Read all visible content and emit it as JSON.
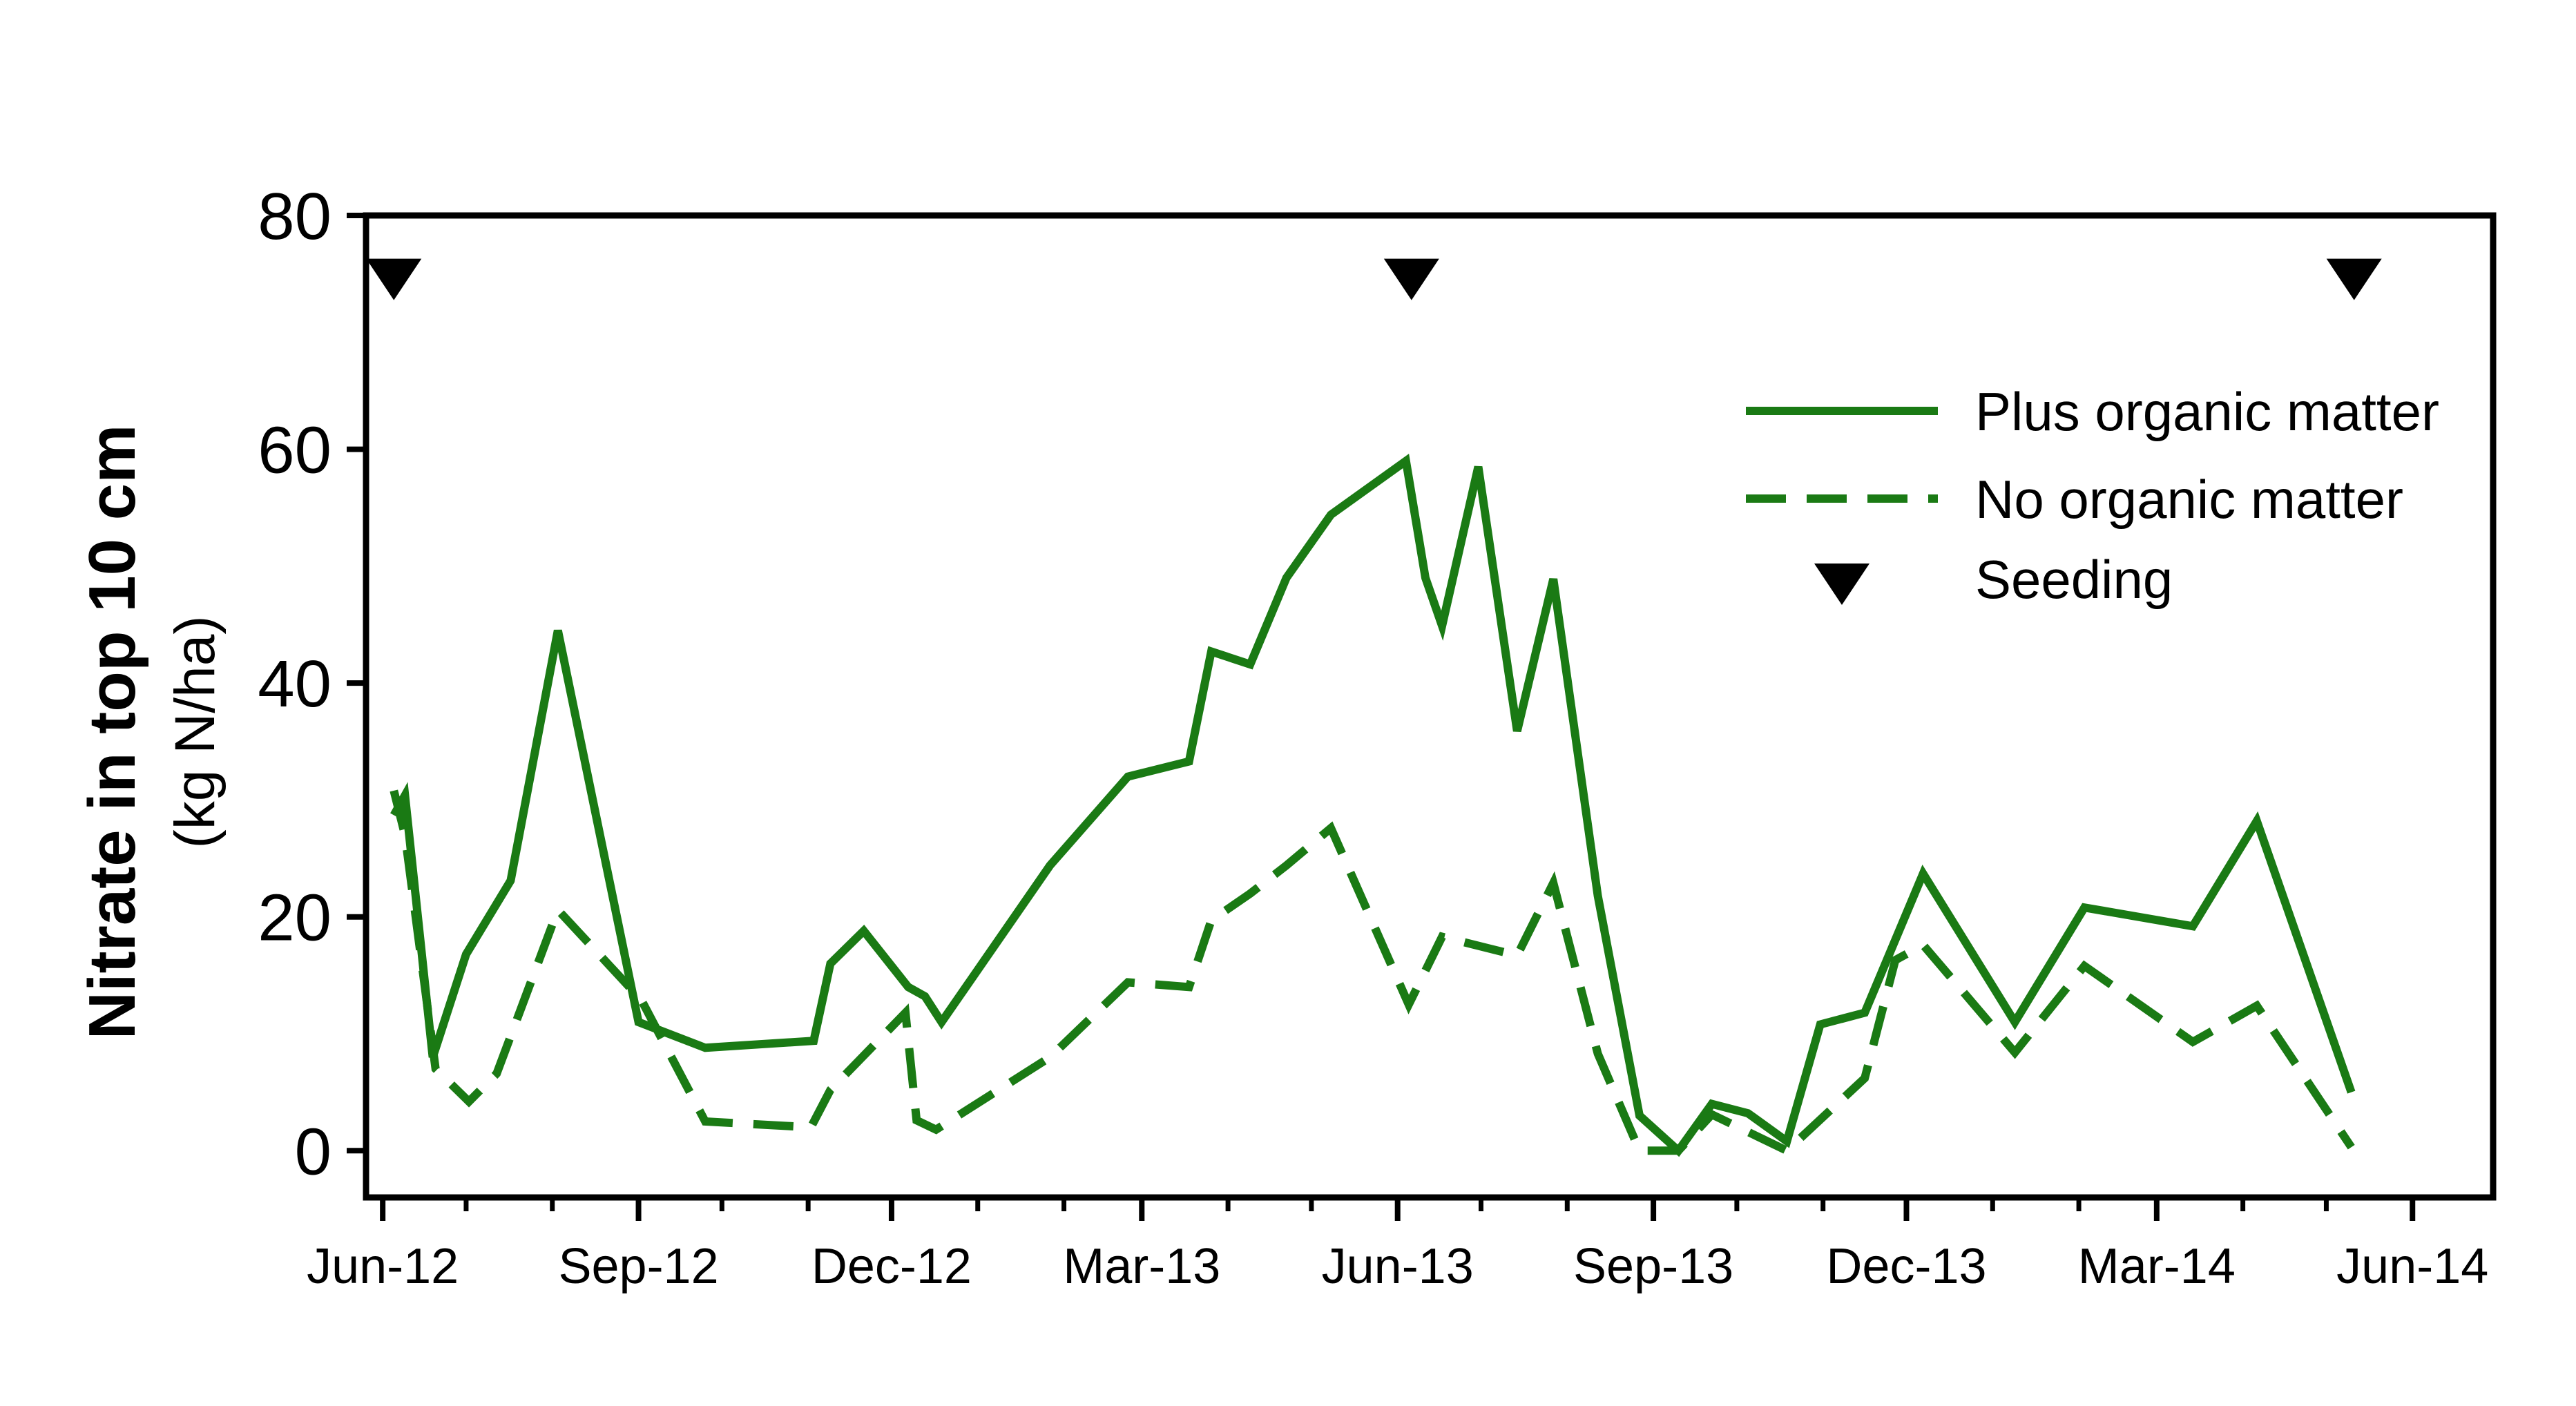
{
  "chart_data": {
    "type": "line",
    "title": "",
    "xlabel": "",
    "ylabel": "Nitrate in top 10 cm",
    "ylabel_units": "(kg N/ha)",
    "ylim": [
      -4,
      80
    ],
    "yticks": [
      0,
      20,
      40,
      60,
      80
    ],
    "xlim": [
      "2012-05-26",
      "2014-06-30"
    ],
    "x_major_ticks": [
      {
        "date": "2012-06-01",
        "label": "Jun-12"
      },
      {
        "date": "2012-09-01",
        "label": "Sep-12"
      },
      {
        "date": "2012-12-01",
        "label": "Dec-12"
      },
      {
        "date": "2013-03-01",
        "label": "Mar-13"
      },
      {
        "date": "2013-06-01",
        "label": "Jun-13"
      },
      {
        "date": "2013-09-01",
        "label": "Sep-13"
      },
      {
        "date": "2013-12-01",
        "label": "Dec-13"
      },
      {
        "date": "2014-03-01",
        "label": "Mar-14"
      },
      {
        "date": "2014-06-01",
        "label": "Jun-14"
      }
    ],
    "x_minor_ticks": [
      "2012-07-01",
      "2012-08-01",
      "2012-10-01",
      "2012-11-01",
      "2013-01-01",
      "2013-02-01",
      "2013-04-01",
      "2013-05-01",
      "2013-07-01",
      "2013-08-01",
      "2013-10-01",
      "2013-11-01",
      "2014-01-01",
      "2014-02-01",
      "2014-04-01",
      "2014-05-01"
    ],
    "grid": false,
    "legend_position": "top-right",
    "colors": {
      "series": "#1a7a14",
      "marker": "#000000",
      "axes": "#000000"
    },
    "series": [
      {
        "name": "Plus organic matter",
        "style": "solid",
        "points": [
          [
            "2012-06-05",
            28.7
          ],
          [
            "2012-06-09",
            30.4
          ],
          [
            "2012-06-19",
            8.0
          ],
          [
            "2012-07-01",
            16.8
          ],
          [
            "2012-07-17",
            23.1
          ],
          [
            "2012-08-03",
            44.5
          ],
          [
            "2012-09-01",
            11.0
          ],
          [
            "2012-09-25",
            8.8
          ],
          [
            "2012-11-03",
            9.4
          ],
          [
            "2012-11-09",
            16.0
          ],
          [
            "2012-11-21",
            18.8
          ],
          [
            "2012-12-07",
            14.0
          ],
          [
            "2012-12-13",
            13.2
          ],
          [
            "2012-12-19",
            11.0
          ],
          [
            "2013-01-27",
            24.4
          ],
          [
            "2013-02-24",
            32.0
          ],
          [
            "2013-03-18",
            33.3
          ],
          [
            "2013-03-26",
            42.7
          ],
          [
            "2013-04-09",
            41.6
          ],
          [
            "2013-04-22",
            49.0
          ],
          [
            "2013-05-08",
            54.4
          ],
          [
            "2013-06-04",
            59.0
          ],
          [
            "2013-06-11",
            49.0
          ],
          [
            "2013-06-17",
            44.9
          ],
          [
            "2013-06-30",
            58.5
          ],
          [
            "2013-07-14",
            35.9
          ],
          [
            "2013-07-27",
            48.9
          ],
          [
            "2013-08-12",
            21.8
          ],
          [
            "2013-08-27",
            3.0
          ],
          [
            "2013-09-10",
            0.0
          ],
          [
            "2013-09-22",
            4.0
          ],
          [
            "2013-10-05",
            3.2
          ],
          [
            "2013-10-19",
            0.8
          ],
          [
            "2013-10-31",
            10.8
          ],
          [
            "2013-11-16",
            11.8
          ],
          [
            "2013-12-07",
            23.7
          ],
          [
            "2014-01-09",
            11.0
          ],
          [
            "2014-02-03",
            20.8
          ],
          [
            "2014-03-14",
            19.2
          ],
          [
            "2014-04-06",
            28.2
          ],
          [
            "2014-05-10",
            5.0
          ]
        ]
      },
      {
        "name": "No organic matter",
        "style": "dashed",
        "points": [
          [
            "2012-06-05",
            30.8
          ],
          [
            "2012-06-09",
            27.0
          ],
          [
            "2012-06-20",
            7.0
          ],
          [
            "2012-07-02",
            4.2
          ],
          [
            "2012-07-12",
            6.6
          ],
          [
            "2012-08-03",
            20.6
          ],
          [
            "2012-09-02",
            12.9
          ],
          [
            "2012-09-25",
            2.5
          ],
          [
            "2012-11-02",
            2.0
          ],
          [
            "2012-11-09",
            5.2
          ],
          [
            "2012-12-06",
            11.8
          ],
          [
            "2012-12-10",
            2.6
          ],
          [
            "2012-12-17",
            1.8
          ],
          [
            "2013-01-27",
            8.0
          ],
          [
            "2013-02-24",
            14.4
          ],
          [
            "2013-03-18",
            14.0
          ],
          [
            "2013-03-26",
            19.7
          ],
          [
            "2013-04-09",
            22.0
          ],
          [
            "2013-04-22",
            24.4
          ],
          [
            "2013-05-08",
            27.6
          ],
          [
            "2013-06-05",
            12.5
          ],
          [
            "2013-06-17",
            18.3
          ],
          [
            "2013-07-14",
            16.7
          ],
          [
            "2013-07-27",
            22.9
          ],
          [
            "2013-08-12",
            8.3
          ],
          [
            "2013-08-27",
            0.0
          ],
          [
            "2013-09-10",
            0.0
          ],
          [
            "2013-09-22",
            3.1
          ],
          [
            "2013-10-19",
            0.0
          ],
          [
            "2013-11-16",
            6.2
          ],
          [
            "2013-11-27",
            16.3
          ],
          [
            "2013-12-07",
            17.6
          ],
          [
            "2014-01-09",
            8.4
          ],
          [
            "2014-02-03",
            15.8
          ],
          [
            "2014-03-14",
            9.3
          ],
          [
            "2014-04-06",
            12.4
          ],
          [
            "2014-05-10",
            0.3
          ]
        ]
      }
    ],
    "markers": {
      "name": "Seeding",
      "symbol": "down-triangle",
      "y": 75,
      "dates": [
        "2012-06-05",
        "2013-06-06",
        "2014-05-11"
      ]
    }
  }
}
